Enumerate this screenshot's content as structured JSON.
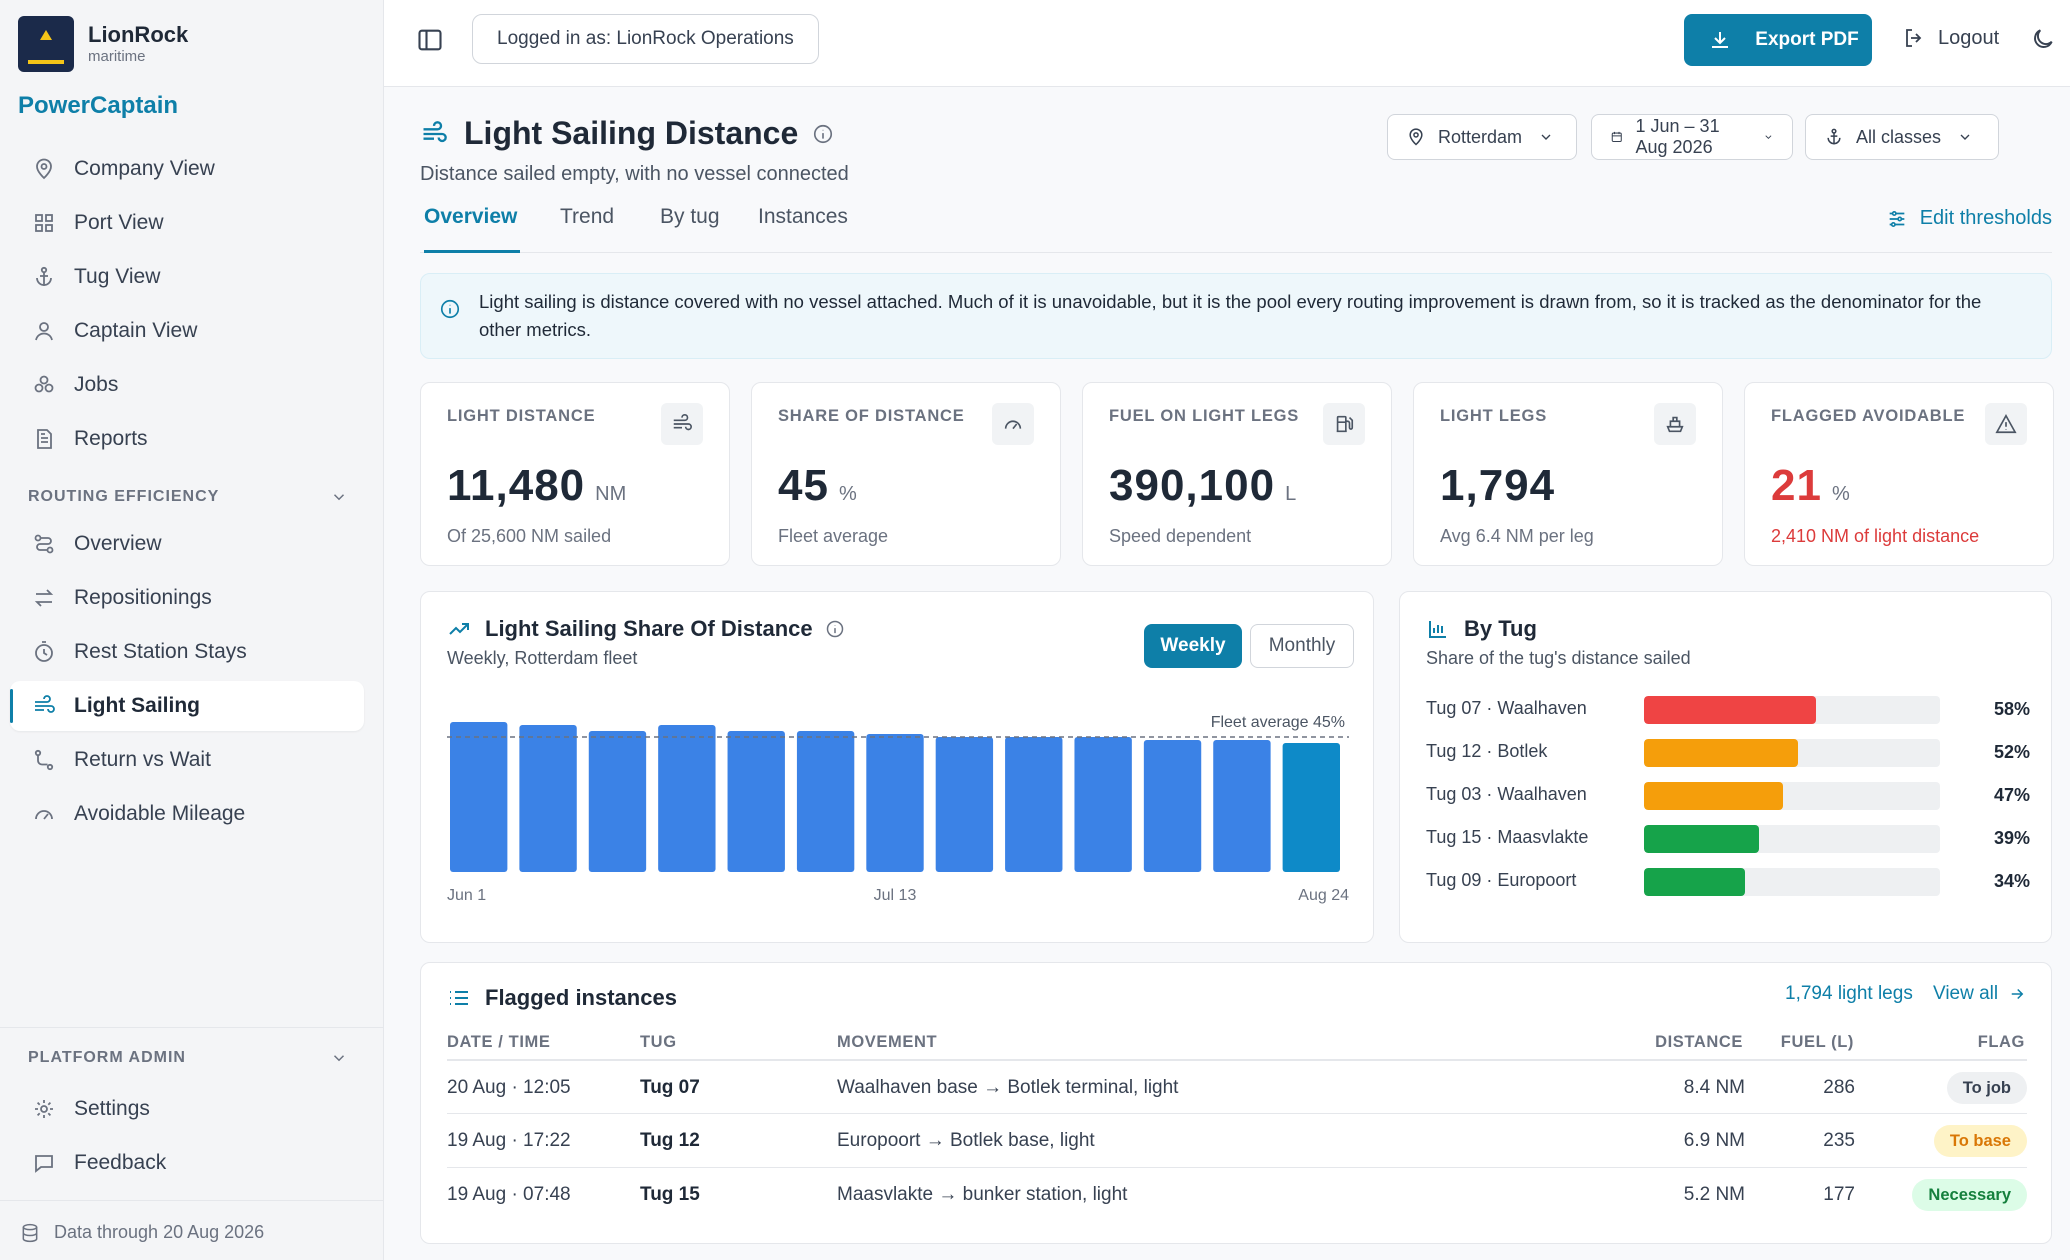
{
  "brand": {
    "name": "LionRock",
    "sub": "maritime",
    "product": "PowerCaptain"
  },
  "nav": {
    "main": [
      {
        "label": "Company View",
        "icon": "map-pin-icon"
      },
      {
        "label": "Port View",
        "icon": "grid-icon"
      },
      {
        "label": "Tug View",
        "icon": "anchor-icon"
      },
      {
        "label": "Captain View",
        "icon": "user-icon"
      },
      {
        "label": "Jobs",
        "icon": "boxes-icon"
      },
      {
        "label": "Reports",
        "icon": "file-icon"
      }
    ],
    "routing_label": "ROUTING EFFICIENCY",
    "routing": [
      {
        "label": "Overview",
        "icon": "route-icon"
      },
      {
        "label": "Repositionings",
        "icon": "arrows-icon"
      },
      {
        "label": "Rest Station Stays",
        "icon": "timer-icon"
      },
      {
        "label": "Light Sailing",
        "icon": "wind-icon",
        "active": true
      },
      {
        "label": "Return vs Wait",
        "icon": "return-icon"
      },
      {
        "label": "Avoidable Mileage",
        "icon": "gauge-icon"
      }
    ],
    "admin_label": "PLATFORM ADMIN",
    "admin": [
      {
        "label": "Settings",
        "icon": "gear-icon"
      },
      {
        "label": "Feedback",
        "icon": "chat-icon"
      }
    ],
    "data_through": "Data through 20 Aug 2026"
  },
  "topbar": {
    "logged_in": "Logged in as: LionRock Operations",
    "export": "Export PDF",
    "logout": "Logout"
  },
  "page": {
    "title": "Light Sailing Distance",
    "subtitle": "Distance sailed empty, with no vessel connected",
    "filters": {
      "port": "Rotterdam",
      "range": "1 Jun – 31 Aug 2026",
      "classes": "All classes"
    },
    "tabs": [
      "Overview",
      "Trend",
      "By tug",
      "Instances"
    ],
    "active_tab": "Overview",
    "edit_thresholds": "Edit thresholds",
    "notice": "Light sailing is distance covered with no vessel attached. Much of it is unavoidable, but it is the pool every routing improvement is drawn from, so it is tracked as the denominator for the other metrics."
  },
  "kpis": [
    {
      "label": "LIGHT DISTANCE",
      "value": "11,480",
      "unit": "NM",
      "note": "Of 25,600 NM sailed",
      "icon": "wind-icon"
    },
    {
      "label": "SHARE OF DISTANCE",
      "value": "45",
      "unit": "%",
      "note": "Fleet average",
      "icon": "gauge-icon"
    },
    {
      "label": "FUEL ON LIGHT LEGS",
      "value": "390,100",
      "unit": "L",
      "note": "Speed dependent",
      "icon": "fuel-icon"
    },
    {
      "label": "LIGHT LEGS",
      "value": "1,794",
      "unit": "",
      "note": "Avg 6.4 NM per leg",
      "icon": "boat-icon"
    },
    {
      "label": "FLAGGED AVOIDABLE",
      "value": "21",
      "unit": "%",
      "note": "2,410 NM of light distance",
      "icon": "warning-icon",
      "alert": true
    }
  ],
  "share_chart": {
    "title": "Light Sailing Share Of Distance",
    "subtitle": "Weekly, Rotterdam fleet",
    "toggle": [
      "Weekly",
      "Monthly"
    ],
    "ref_label": "Fleet average 45%"
  },
  "chart_data": {
    "type": "bar",
    "categories": [
      "Jun 1",
      "",
      "",
      "",
      "",
      "",
      "Jul 13",
      "",
      "",
      "",
      "",
      "",
      "Aug 24"
    ],
    "x_tick_labels": [
      "Jun 1",
      "Jul 13",
      "Aug 24"
    ],
    "values": [
      50,
      49,
      47,
      49,
      47,
      47,
      46,
      45,
      45,
      45,
      44,
      44,
      43
    ],
    "reference_line": 45,
    "ylim": [
      0,
      50
    ],
    "grid": false,
    "colors": {
      "bar": "#3b82e6",
      "last_bar": "#0e8ac8",
      "reference": "#6b7280"
    }
  },
  "by_tug": {
    "title": "By Tug",
    "subtitle": "Share of the tug's distance sailed",
    "rows": [
      {
        "name": "Tug 07 · Waalhaven",
        "value": 58,
        "label": "58%",
        "color": "#ef4444"
      },
      {
        "name": "Tug 12 · Botlek",
        "value": 52,
        "label": "52%",
        "color": "#f59e0b"
      },
      {
        "name": "Tug 03 · Waalhaven",
        "value": 47,
        "label": "47%",
        "color": "#f59e0b"
      },
      {
        "name": "Tug 15 · Maasvlakte",
        "value": 39,
        "label": "39%",
        "color": "#16a34a"
      },
      {
        "name": "Tug 09 · Europoort",
        "value": 34,
        "label": "34%",
        "color": "#16a34a"
      }
    ]
  },
  "flagged": {
    "title": "Flagged instances",
    "count_link": "1,794 light legs",
    "view_all": "View all",
    "headers": [
      "DATE / TIME",
      "TUG",
      "MOVEMENT",
      "DISTANCE",
      "FUEL (L)",
      "FLAG"
    ],
    "rows": [
      {
        "date": "20 Aug · 12:05",
        "tug": "Tug 07",
        "movement": "Waalhaven base → Botlek terminal, light",
        "distance": "8.4 NM",
        "fuel": "286",
        "flag": "To job",
        "flag_bg": "#eef0f2",
        "flag_fg": "#374151"
      },
      {
        "date": "19 Aug · 17:22",
        "tug": "Tug 12",
        "movement": "Europoort → Botlek base, light",
        "distance": "6.9 NM",
        "fuel": "235",
        "flag": "To base",
        "flag_bg": "#fef3c7",
        "flag_fg": "#d97706"
      },
      {
        "date": "19 Aug · 07:48",
        "tug": "Tug 15",
        "movement": "Maasvlakte → bunker station, light",
        "distance": "5.2 NM",
        "fuel": "177",
        "flag": "Necessary",
        "flag_bg": "#dcfce7",
        "flag_fg": "#15803d"
      }
    ]
  }
}
